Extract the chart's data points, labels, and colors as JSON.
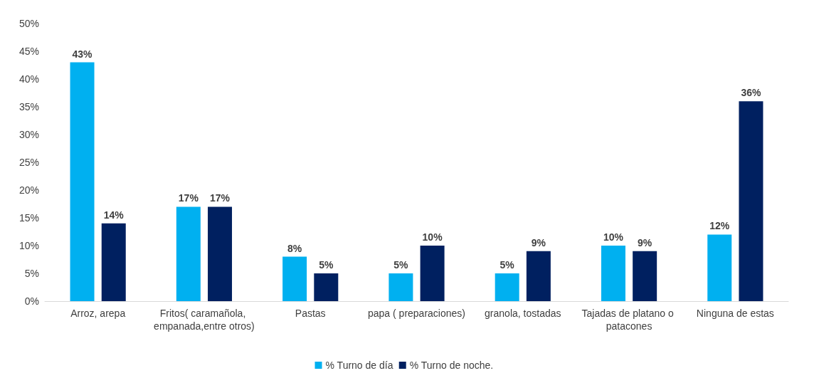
{
  "chart_data": {
    "type": "bar",
    "categories": [
      "Arroz, arepa",
      "Fritos( caramañola, empanada,entre otros)",
      "Pastas",
      "papa ( preparaciones)",
      "granola, tostadas",
      "Tajadas de platano o patacones",
      "Ninguna de estas"
    ],
    "series": [
      {
        "name": "% Turno de día",
        "color": "#00b0f0",
        "values": [
          43,
          17,
          8,
          5,
          5,
          10,
          12
        ],
        "value_labels": [
          "43%",
          "17%",
          "8%",
          "5%",
          "5%",
          "10%",
          "12%"
        ]
      },
      {
        "name": "% Turno de noche.",
        "color": "#002060",
        "values": [
          14,
          17,
          5,
          10,
          9,
          9,
          36
        ],
        "value_labels": [
          "14%",
          "17%",
          "5%",
          "10%",
          "9%",
          "9%",
          "36%"
        ]
      }
    ],
    "ylim": [
      0,
      50
    ],
    "yticks": [
      {
        "value": 0,
        "label": "0%"
      },
      {
        "value": 5,
        "label": "5%"
      },
      {
        "value": 10,
        "label": "10%"
      },
      {
        "value": 15,
        "label": "15%"
      },
      {
        "value": 20,
        "label": "20%"
      },
      {
        "value": 25,
        "label": "25%"
      },
      {
        "value": 30,
        "label": "30%"
      },
      {
        "value": 35,
        "label": "35%"
      },
      {
        "value": 40,
        "label": "40%"
      },
      {
        "value": 45,
        "label": "45%"
      },
      {
        "value": 50,
        "label": "50%"
      }
    ],
    "grid": false,
    "legend": "bottom"
  }
}
